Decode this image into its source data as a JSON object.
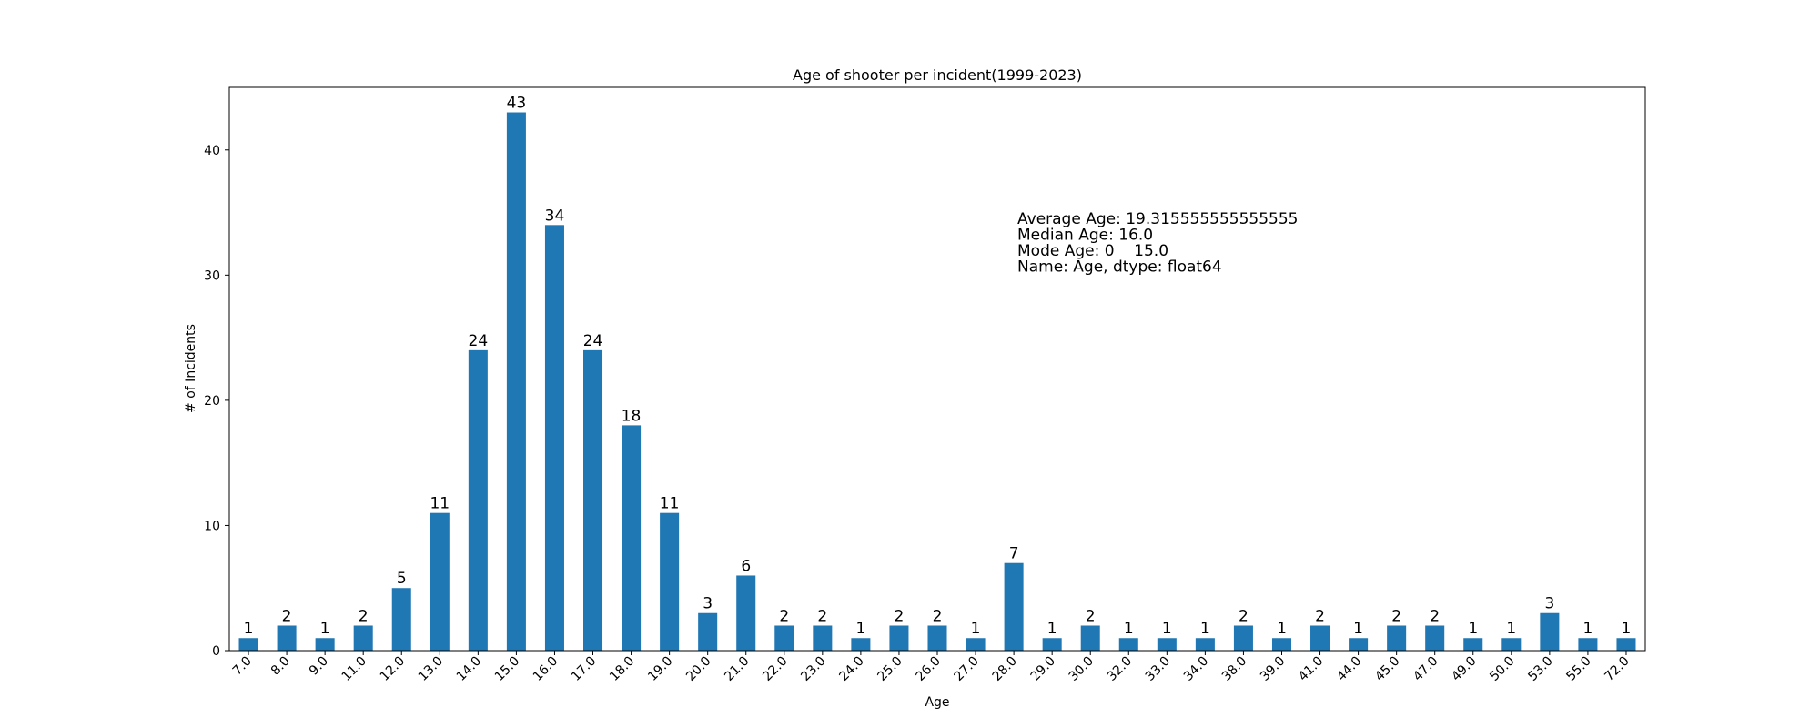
{
  "chart_data": {
    "type": "bar",
    "title": "Age of shooter per incident(1999-2023)",
    "xlabel": "Age",
    "ylabel": "# of Incidents",
    "categories": [
      "7.0",
      "8.0",
      "9.0",
      "11.0",
      "12.0",
      "13.0",
      "14.0",
      "15.0",
      "16.0",
      "17.0",
      "18.0",
      "19.0",
      "20.0",
      "21.0",
      "22.0",
      "23.0",
      "24.0",
      "25.0",
      "26.0",
      "27.0",
      "28.0",
      "29.0",
      "30.0",
      "32.0",
      "33.0",
      "34.0",
      "38.0",
      "39.0",
      "41.0",
      "44.0",
      "45.0",
      "47.0",
      "49.0",
      "50.0",
      "53.0",
      "55.0",
      "72.0"
    ],
    "values": [
      1,
      2,
      1,
      2,
      5,
      11,
      24,
      43,
      34,
      24,
      18,
      11,
      3,
      6,
      2,
      2,
      1,
      2,
      2,
      1,
      7,
      1,
      2,
      1,
      1,
      1,
      2,
      1,
      2,
      1,
      2,
      2,
      1,
      1,
      3,
      1,
      1
    ],
    "ylim": [
      0,
      45
    ],
    "yticks": [
      0,
      10,
      20,
      30,
      40
    ],
    "bar_color": "#1f77b4",
    "grid": false,
    "annotation_lines": [
      "Average Age: 19.315555555555555",
      "Median Age: 16.0",
      "Mode Age: 0    15.0",
      "Name: Age, dtype: float64"
    ]
  }
}
